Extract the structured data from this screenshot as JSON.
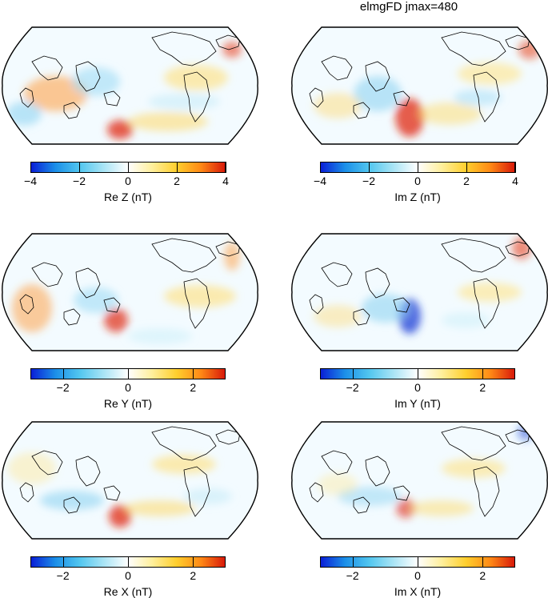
{
  "title": "elmgFD jmax=480",
  "panels": [
    {
      "label": "Re Z (nT)",
      "ticks": [
        "−4",
        "−2",
        "0",
        "2",
        "4"
      ],
      "tick_values": [
        -4,
        -2,
        0,
        2,
        4
      ],
      "range": [
        -4,
        4
      ]
    },
    {
      "label": "Im Z (nT)",
      "ticks": [
        "−4",
        "−2",
        "0",
        "2",
        "4"
      ],
      "tick_values": [
        -4,
        -2,
        0,
        2,
        4
      ],
      "range": [
        -4,
        4
      ]
    },
    {
      "label": "Re Y (nT)",
      "ticks": [
        "−2",
        "0",
        "2"
      ],
      "tick_values": [
        -2,
        0,
        2
      ],
      "range": [
        -3,
        3
      ]
    },
    {
      "label": "Im Y (nT)",
      "ticks": [
        "−2",
        "0",
        "2"
      ],
      "tick_values": [
        -2,
        0,
        2
      ],
      "range": [
        -3,
        3
      ]
    },
    {
      "label": "Re X (nT)",
      "ticks": [
        "−2",
        "0",
        "2"
      ],
      "tick_values": [
        -2,
        0,
        2
      ],
      "range": [
        -3,
        3
      ]
    },
    {
      "label": "Im X (nT)",
      "ticks": [
        "−2",
        "0",
        "2"
      ],
      "tick_values": [
        -2,
        0,
        2
      ],
      "range": [
        -3,
        3
      ]
    }
  ],
  "colormap": [
    "#0a1fd6",
    "#1b8fe8",
    "#52c6ef",
    "#a9e4f5",
    "#ffffff",
    "#ffef9c",
    "#ffcf2e",
    "#ff8a16",
    "#d81a0a"
  ]
}
